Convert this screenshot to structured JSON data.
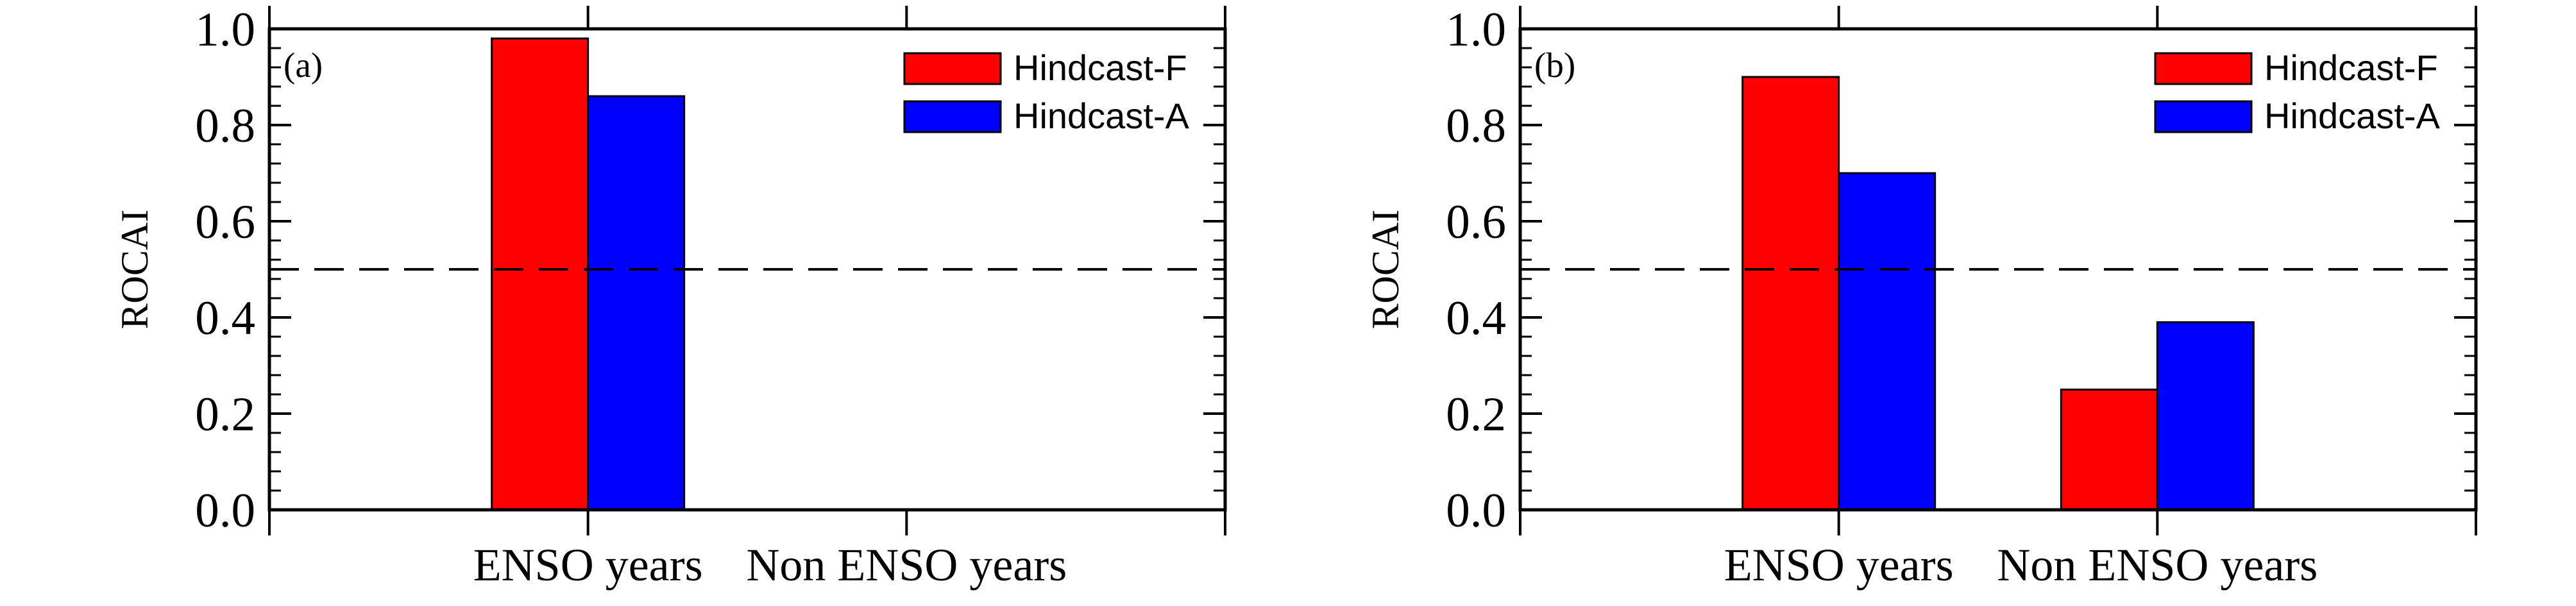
{
  "chart_data": [
    {
      "type": "bar",
      "panel_label": "(a)",
      "categories": [
        "ENSO years",
        "Non ENSO years"
      ],
      "series": [
        {
          "name": "Hindcast-F",
          "color": "#ff0000",
          "values": [
            0.98,
            null
          ]
        },
        {
          "name": "Hindcast-A",
          "color": "#0000ff",
          "values": [
            0.86,
            null
          ]
        }
      ],
      "ylabel": "ROCAI",
      "xlabel": "",
      "ylim": [
        0.0,
        1.0
      ],
      "yticks": [
        "0.0",
        "0.2",
        "0.4",
        "0.6",
        "0.8",
        "1.0"
      ],
      "reference_line": 0.5,
      "legend_position": "top-right",
      "grid": false
    },
    {
      "type": "bar",
      "panel_label": "(b)",
      "categories": [
        "ENSO years",
        "Non ENSO years"
      ],
      "series": [
        {
          "name": "Hindcast-F",
          "color": "#ff0000",
          "values": [
            0.9,
            0.25
          ]
        },
        {
          "name": "Hindcast-A",
          "color": "#0000ff",
          "values": [
            0.7,
            0.39
          ]
        }
      ],
      "ylabel": "ROCAI",
      "xlabel": "",
      "ylim": [
        0.0,
        1.0
      ],
      "yticks": [
        "0.0",
        "0.2",
        "0.4",
        "0.6",
        "0.8",
        "1.0"
      ],
      "reference_line": 0.5,
      "legend_position": "top-right",
      "grid": false
    }
  ]
}
